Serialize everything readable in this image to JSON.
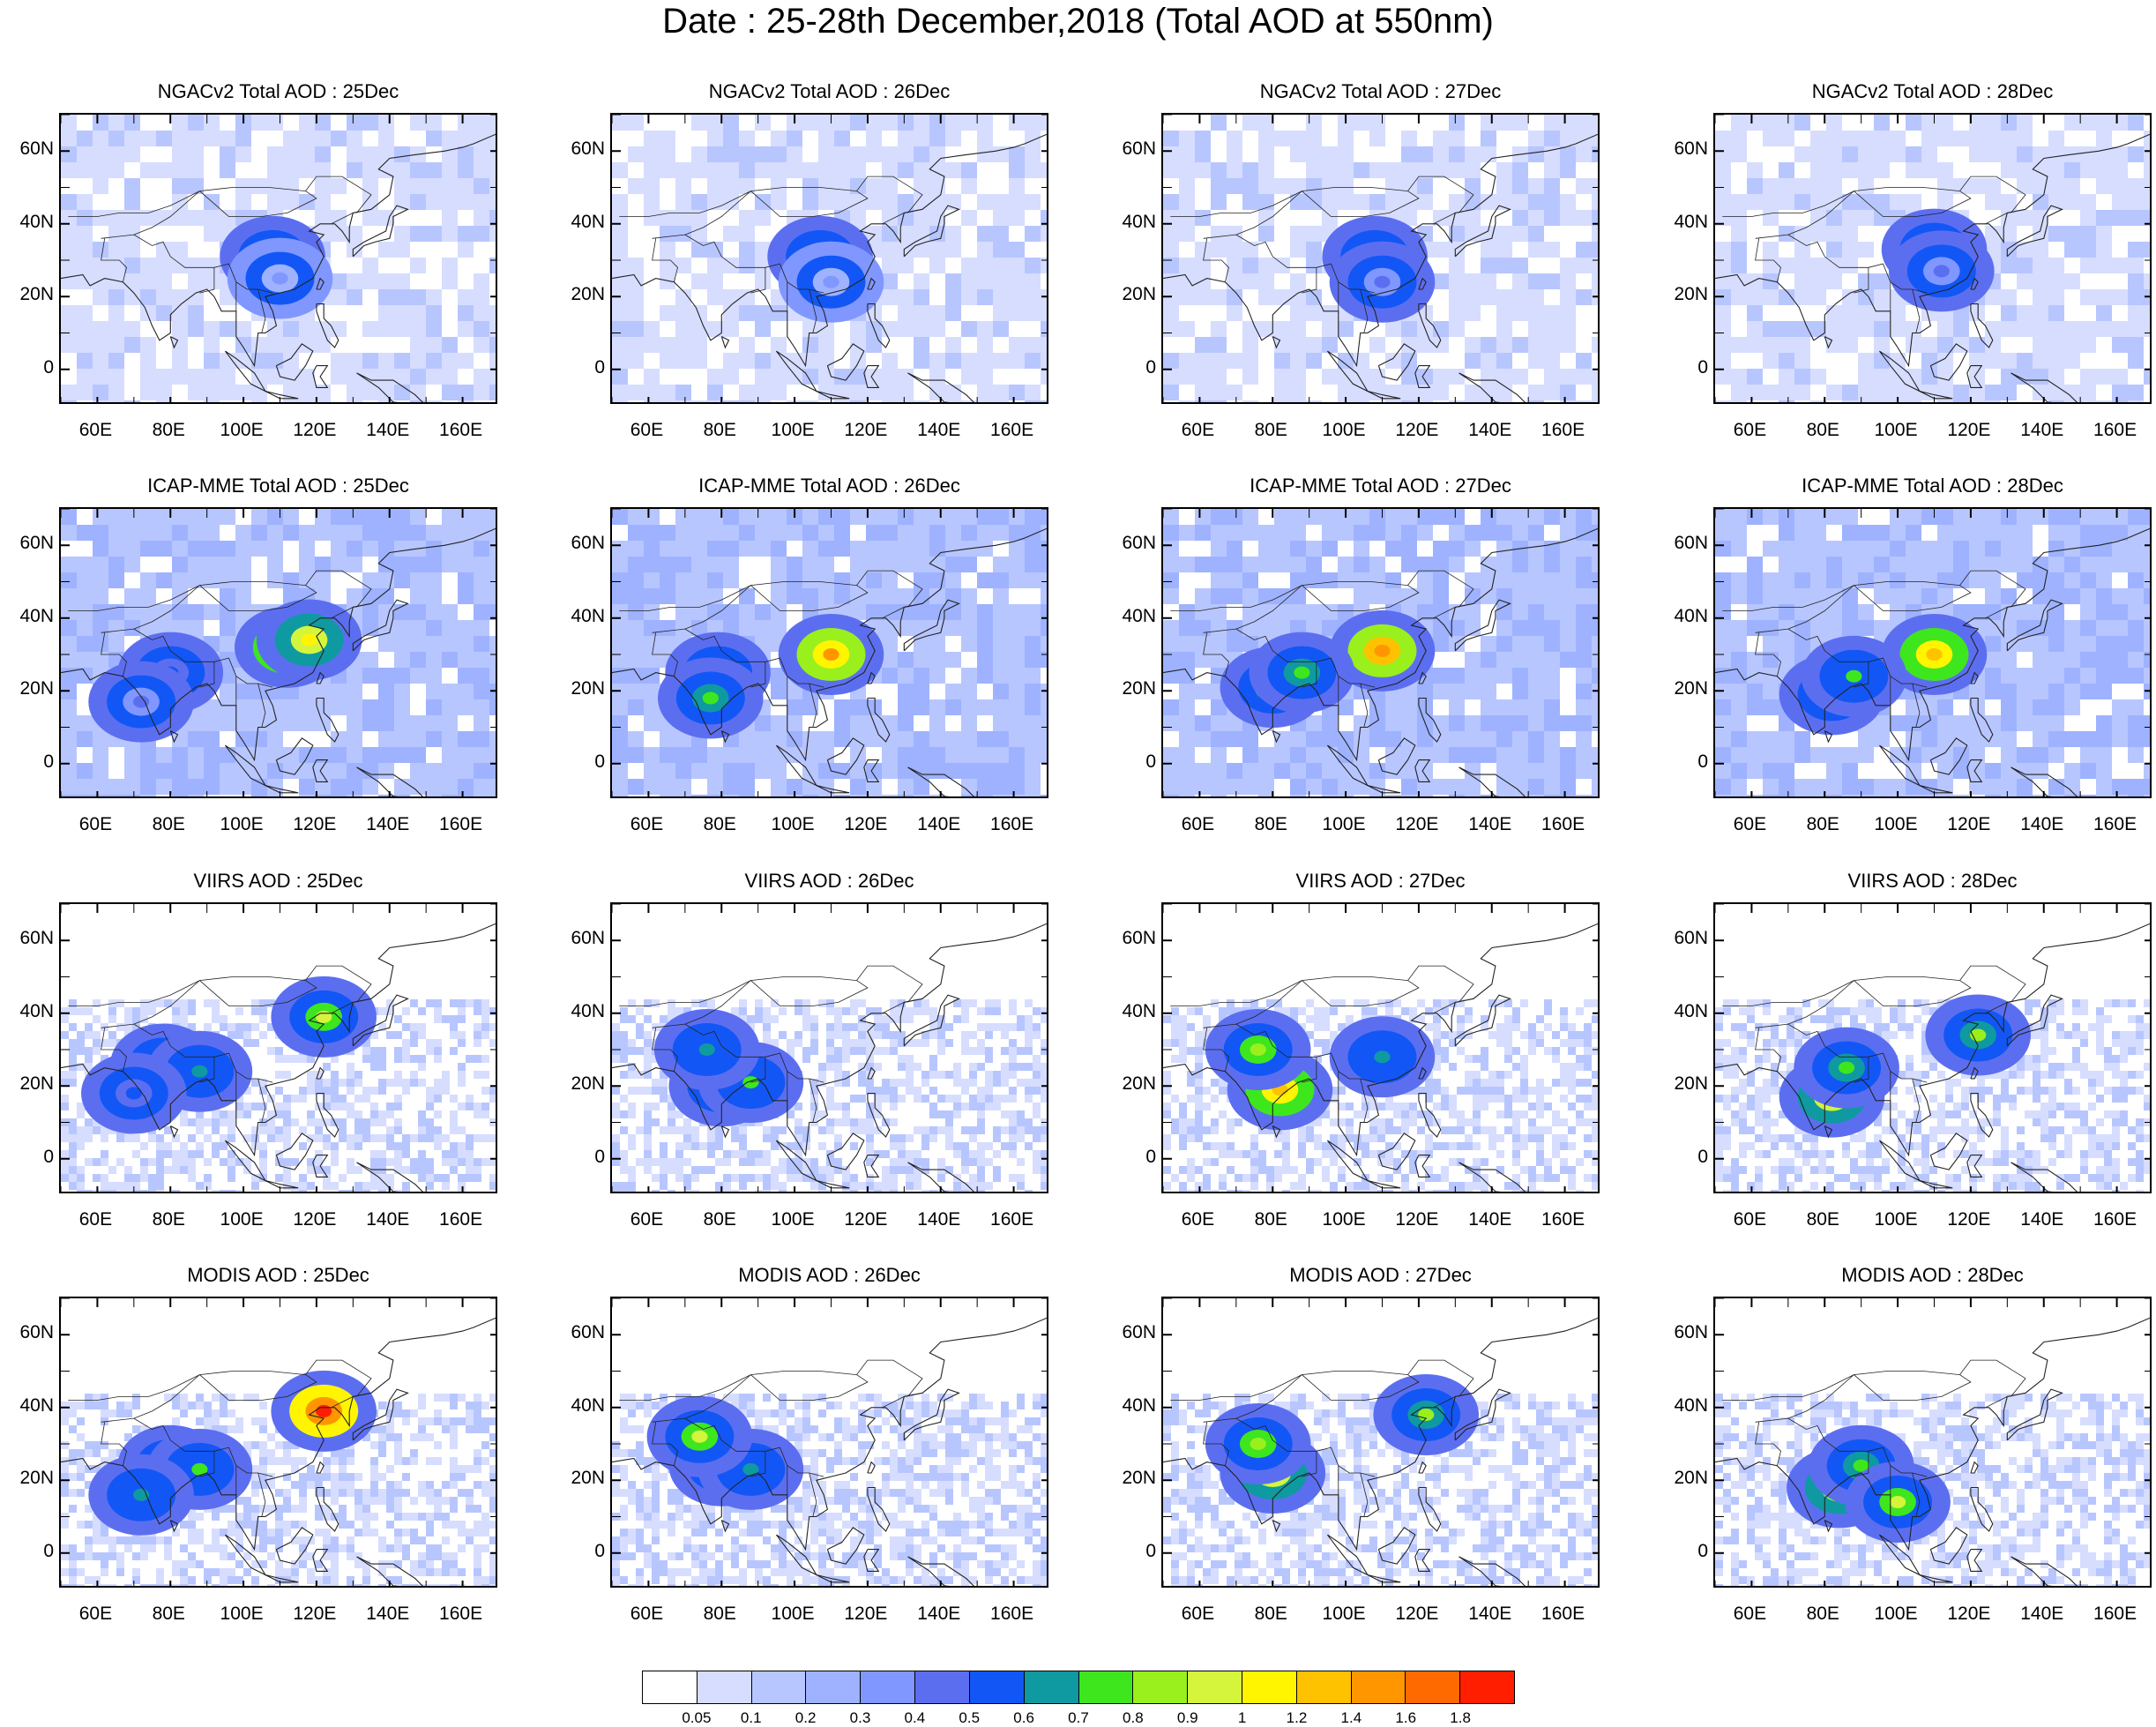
{
  "title": "Date : 25-28th December,2018 (Total AOD at 550nm)",
  "columns": [
    "25Dec",
    "26Dec",
    "27Dec",
    "28Dec"
  ],
  "rows": [
    {
      "label": "NGACv2 Total AOD",
      "key": "ngac"
    },
    {
      "label": "ICAP-MME Total AOD",
      "key": "icap"
    },
    {
      "label": "VIIRS AOD",
      "key": "viirs"
    },
    {
      "label": "MODIS AOD",
      "key": "modis"
    }
  ],
  "panel_titles": [
    [
      "NGACv2 Total AOD : 25Dec",
      "NGACv2 Total AOD : 26Dec",
      "NGACv2 Total AOD : 27Dec",
      "NGACv2 Total AOD : 28Dec"
    ],
    [
      "ICAP-MME Total AOD : 25Dec",
      "ICAP-MME Total AOD : 26Dec",
      "ICAP-MME Total AOD : 27Dec",
      "ICAP-MME Total AOD : 28Dec"
    ],
    [
      "VIIRS AOD : 25Dec",
      "VIIRS AOD : 26Dec",
      "VIIRS AOD : 27Dec",
      "VIIRS AOD : 28Dec"
    ],
    [
      "MODIS AOD : 25Dec",
      "MODIS AOD : 26Dec",
      "MODIS AOD : 27Dec",
      "MODIS AOD : 28Dec"
    ]
  ],
  "lat_ticks": [
    "60N",
    "40N",
    "20N",
    "0"
  ],
  "lon_ticks": [
    "60E",
    "80E",
    "100E",
    "120E",
    "140E",
    "160E"
  ],
  "map_extent": {
    "lon_min": 50,
    "lon_max": 170,
    "lat_min": -10,
    "lat_max": 70
  },
  "colorbar": {
    "labels": [
      "0.05",
      "0.1",
      "0.2",
      "0.3",
      "0.4",
      "0.5",
      "0.6",
      "0.7",
      "0.8",
      "0.9",
      "1",
      "1.2",
      "1.4",
      "1.6",
      "1.8"
    ],
    "colors": [
      "#ffffff",
      "#d6ddff",
      "#b8c6ff",
      "#9eb2ff",
      "#8097ff",
      "#5c6ef0",
      "#1257f5",
      "#0e9aa0",
      "#3ee61e",
      "#9af01c",
      "#d4f53c",
      "#fff500",
      "#ffc200",
      "#ff9600",
      "#ff6a00",
      "#ff1e00"
    ]
  },
  "hotspots": {
    "ngac": [
      [
        {
          "lon": 108,
          "lat": 31,
          "v": 0.55
        },
        {
          "lon": 110,
          "lat": 25,
          "v": 0.35
        }
      ],
      [
        {
          "lon": 107,
          "lat": 31,
          "v": 0.5
        },
        {
          "lon": 110,
          "lat": 24,
          "v": 0.35
        }
      ],
      [
        {
          "lon": 108,
          "lat": 31,
          "v": 0.55
        },
        {
          "lon": 110,
          "lat": 24,
          "v": 0.4
        }
      ],
      [
        {
          "lon": 110,
          "lat": 33,
          "v": 0.55
        },
        {
          "lon": 112,
          "lat": 27,
          "v": 0.45
        }
      ]
    ],
    "icap": [
      [
        {
          "lon": 112,
          "lat": 32,
          "v": 1.3
        },
        {
          "lon": 118,
          "lat": 34,
          "v": 1.1
        },
        {
          "lon": 80,
          "lat": 25,
          "v": 0.5
        },
        {
          "lon": 72,
          "lat": 17,
          "v": 0.45
        }
      ],
      [
        {
          "lon": 110,
          "lat": 30,
          "v": 1.4
        },
        {
          "lon": 79,
          "lat": 25,
          "v": 0.7
        },
        {
          "lon": 77,
          "lat": 18,
          "v": 0.75
        }
      ],
      [
        {
          "lon": 110,
          "lat": 31,
          "v": 1.5
        },
        {
          "lon": 80,
          "lat": 21,
          "v": 0.85
        },
        {
          "lon": 88,
          "lat": 25,
          "v": 0.75
        }
      ],
      [
        {
          "lon": 110,
          "lat": 30,
          "v": 1.2
        },
        {
          "lon": 82,
          "lat": 19,
          "v": 0.85
        },
        {
          "lon": 88,
          "lat": 24,
          "v": 0.7
        }
      ]
    ],
    "viirs": [
      [
        {
          "lon": 78,
          "lat": 26,
          "v": 0.6
        },
        {
          "lon": 88,
          "lat": 24,
          "v": 0.6
        },
        {
          "lon": 122,
          "lat": 39,
          "v": 0.9
        },
        {
          "lon": 70,
          "lat": 18,
          "v": 0.5
        }
      ],
      [
        {
          "lon": 80,
          "lat": 20,
          "v": 0.75
        },
        {
          "lon": 88,
          "lat": 21,
          "v": 0.7
        },
        {
          "lon": 76,
          "lat": 30,
          "v": 0.6
        }
      ],
      [
        {
          "lon": 82,
          "lat": 19,
          "v": 1.3
        },
        {
          "lon": 76,
          "lat": 30,
          "v": 0.85
        },
        {
          "lon": 110,
          "lat": 28,
          "v": 0.6
        }
      ],
      [
        {
          "lon": 82,
          "lat": 17,
          "v": 1.1
        },
        {
          "lon": 86,
          "lat": 25,
          "v": 0.75
        },
        {
          "lon": 122,
          "lat": 34,
          "v": 0.8
        }
      ]
    ],
    "modis": [
      [
        {
          "lon": 80,
          "lat": 24,
          "v": 0.75
        },
        {
          "lon": 88,
          "lat": 23,
          "v": 0.7
        },
        {
          "lon": 122,
          "lat": 39,
          "v": 1.8
        },
        {
          "lon": 72,
          "lat": 16,
          "v": 0.6
        }
      ],
      [
        {
          "lon": 80,
          "lat": 24,
          "v": 0.75
        },
        {
          "lon": 88,
          "lat": 23,
          "v": 0.6
        },
        {
          "lon": 74,
          "lat": 32,
          "v": 0.9
        }
      ],
      [
        {
          "lon": 80,
          "lat": 22,
          "v": 1.1
        },
        {
          "lon": 76,
          "lat": 30,
          "v": 0.85
        },
        {
          "lon": 122,
          "lat": 38,
          "v": 0.8
        }
      ],
      [
        {
          "lon": 84,
          "lat": 18,
          "v": 1.0
        },
        {
          "lon": 90,
          "lat": 24,
          "v": 0.75
        },
        {
          "lon": 100,
          "lat": 14,
          "v": 0.9
        }
      ]
    ]
  }
}
